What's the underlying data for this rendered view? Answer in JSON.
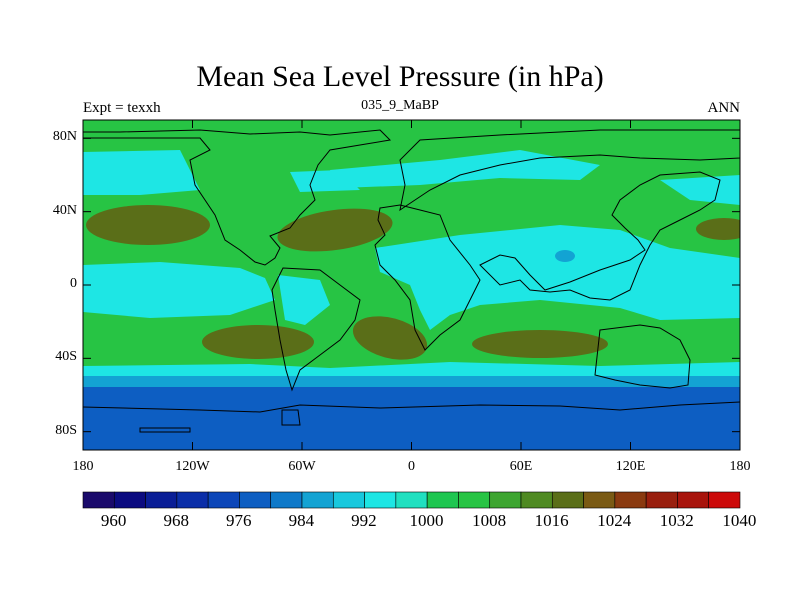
{
  "title": "Mean Sea Level Pressure (in hPa)",
  "subtitle_left": "Expt = texxh",
  "subtitle_center": "035_9_MaBP",
  "subtitle_right": "ANN",
  "map_extent": {
    "lon": [
      -180,
      180
    ],
    "lat": [
      -90,
      90
    ]
  },
  "x_ticks": [
    {
      "lon": -180,
      "label": "180"
    },
    {
      "lon": -120,
      "label": "120W"
    },
    {
      "lon": -60,
      "label": "60W"
    },
    {
      "lon": 0,
      "label": "0"
    },
    {
      "lon": 60,
      "label": "60E"
    },
    {
      "lon": 120,
      "label": "120E"
    },
    {
      "lon": 180,
      "label": "180"
    }
  ],
  "y_ticks": [
    {
      "lat": 80,
      "label": "80N"
    },
    {
      "lat": 40,
      "label": "40N"
    },
    {
      "lat": 0,
      "label": "0"
    },
    {
      "lat": -40,
      "label": "40S"
    },
    {
      "lat": -80,
      "label": "80S"
    }
  ],
  "colorbar": {
    "levels": [
      960,
      964,
      968,
      972,
      976,
      980,
      984,
      988,
      992,
      996,
      1000,
      1004,
      1008,
      1012,
      1016,
      1020,
      1024,
      1028,
      1032,
      1036,
      1040
    ],
    "labeled_levels": [
      960,
      968,
      976,
      984,
      992,
      1000,
      1008,
      1016,
      1024,
      1032,
      1040
    ],
    "colors": [
      "#1a0a6b",
      "#0b0b80",
      "#0a1e96",
      "#0b2ea8",
      "#0c46b8",
      "#0d5ec2",
      "#0f79c9",
      "#13a3d3",
      "#18c8dd",
      "#1ee6e4",
      "#20e0c0",
      "#1ec650",
      "#27c444",
      "#3da530",
      "#4f8a22",
      "#5a6e18",
      "#7a5a14",
      "#8a3a10",
      "#991f0e",
      "#a8140c",
      "#cc0a0a"
    ]
  },
  "chart_data": {
    "type": "heatmap",
    "title": "Mean Sea Level Pressure (in hPa)",
    "xlabel": "",
    "ylabel": "",
    "units": "hPa",
    "xlim": [
      -180,
      180
    ],
    "ylim": [
      -90,
      90
    ],
    "fields": [
      {
        "region": "background",
        "pressure_range": [
          1008,
          1012
        ]
      },
      {
        "region": "southern-ocean-band",
        "lat_range": [
          -90,
          -50
        ],
        "pressure_range": [
          984,
          992
        ]
      },
      {
        "region": "subpolar-south-band",
        "lat_range": [
          -50,
          -45
        ],
        "pressure_range": [
          996,
          1000
        ]
      },
      {
        "region": "tropical-pacific",
        "pressure_range": [
          1000,
          1004
        ]
      },
      {
        "region": "tropical-indian-ocean",
        "pressure_range": [
          1000,
          1004
        ]
      },
      {
        "region": "north-pacific-high",
        "pressure_range": [
          1012,
          1016
        ]
      },
      {
        "region": "north-atlantic-high",
        "pressure_range": [
          1012,
          1016
        ]
      },
      {
        "region": "south-pacific-high",
        "pressure_range": [
          1012,
          1016
        ]
      },
      {
        "region": "south-atlantic-high",
        "pressure_range": [
          1012,
          1016
        ]
      },
      {
        "region": "south-indian-high",
        "pressure_range": [
          1012,
          1016
        ]
      }
    ]
  }
}
